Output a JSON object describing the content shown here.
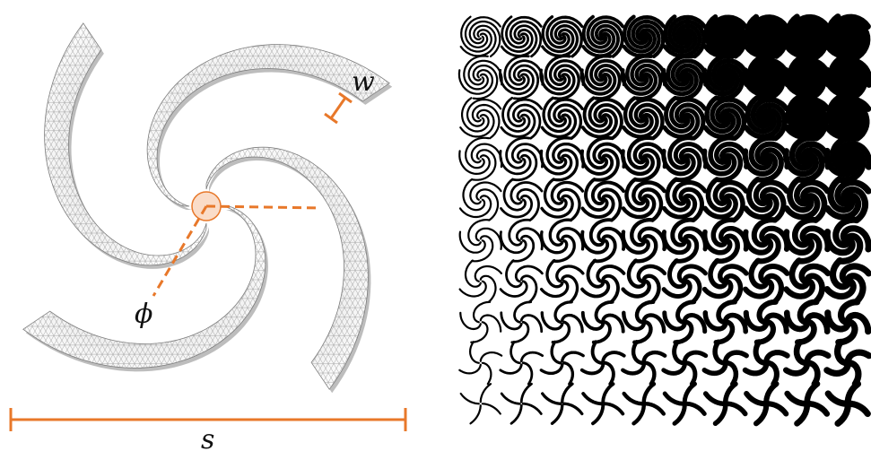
{
  "labels": {
    "width_symbol": "w",
    "angle_symbol": "ϕ",
    "size_symbol": "s"
  },
  "colors": {
    "annotation": "#e8782a",
    "annotation_fill": "#fadcc8",
    "curve": "#000000",
    "mesh": "#9a9a9a",
    "blade_fill": "#f2f2f2",
    "blade_shadow": "#bdbdbd"
  },
  "grid": {
    "rows": 10,
    "cols": 10
  }
}
